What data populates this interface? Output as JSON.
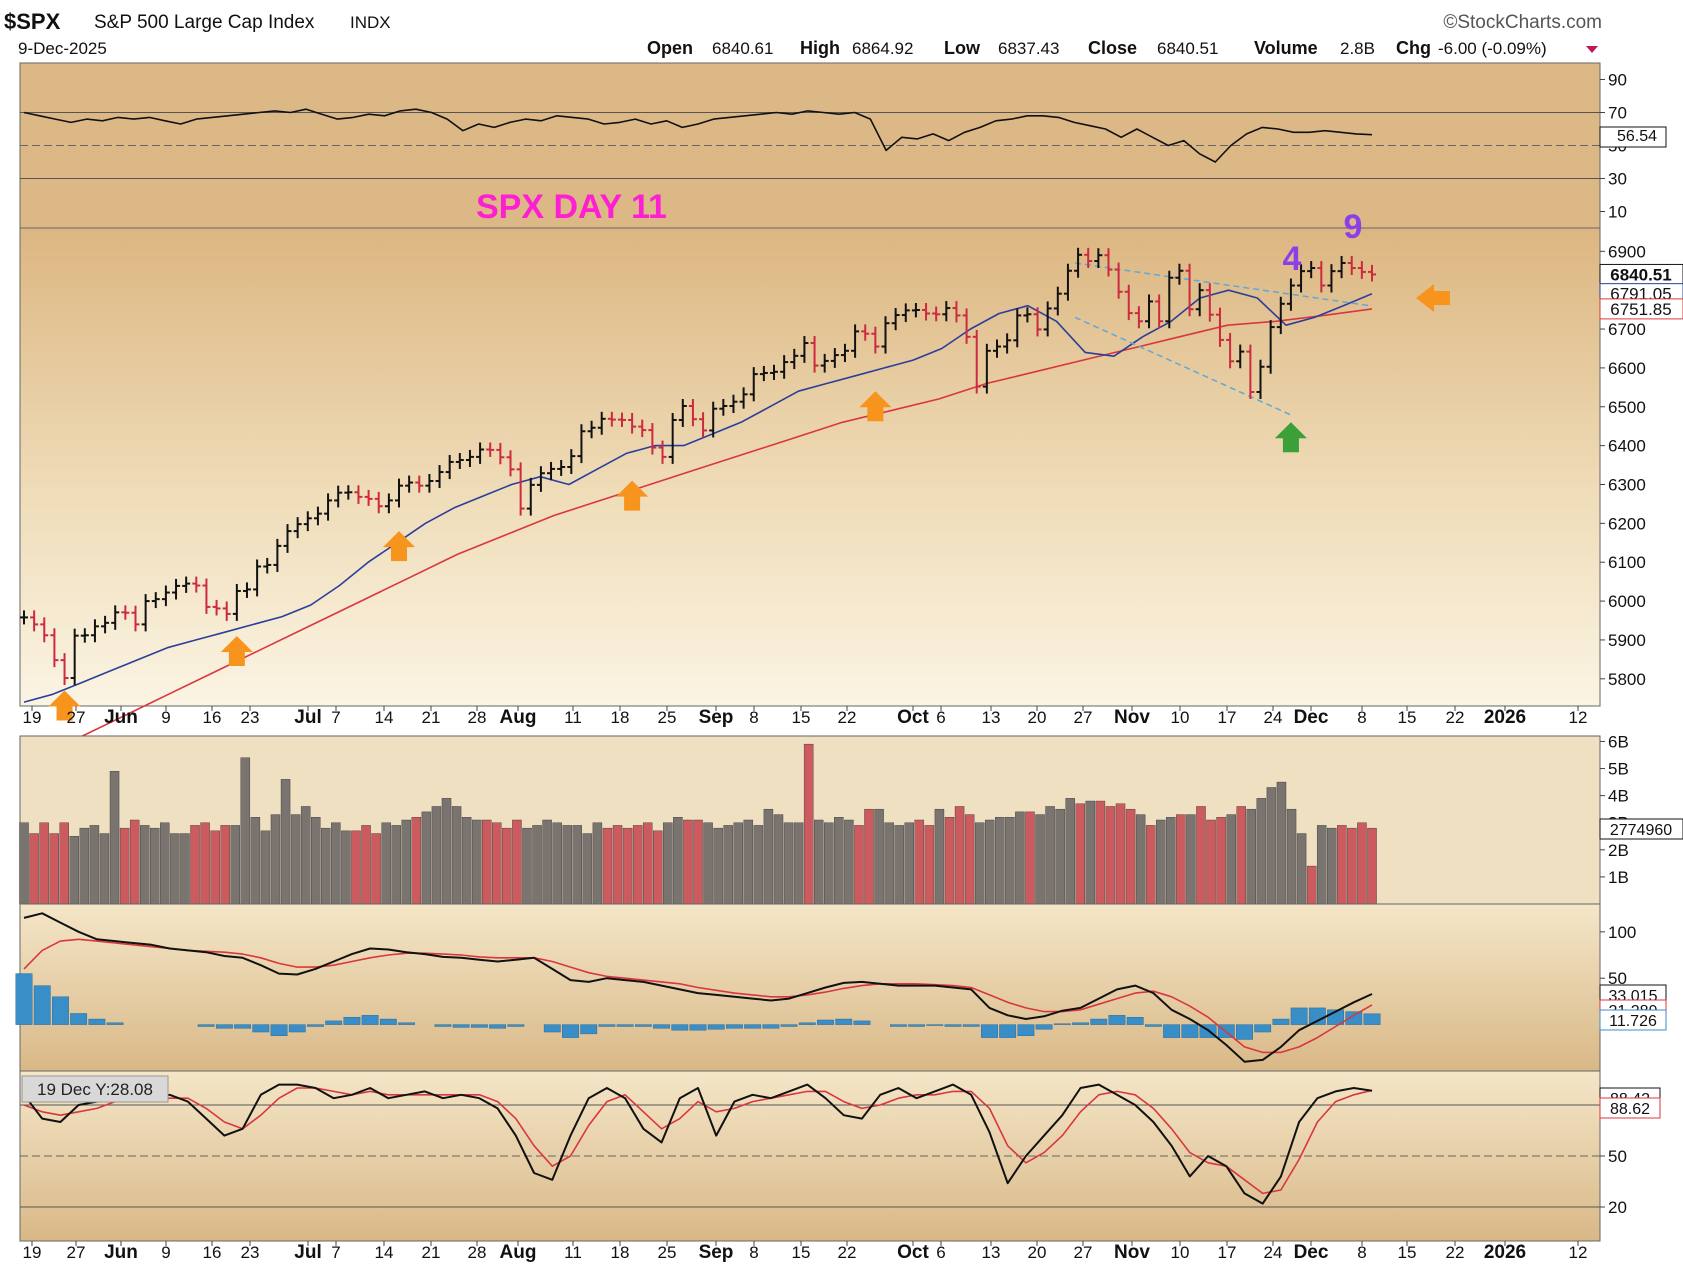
{
  "header": {
    "symbol": "$SPX",
    "name": "S&P 500 Large Cap Index",
    "exchange": "INDX",
    "brand": "©StockCharts.com",
    "date": "9-Dec-2025",
    "quote": [
      {
        "label": "Open",
        "value": "6840.61"
      },
      {
        "label": "High",
        "value": "6864.92"
      },
      {
        "label": "Low",
        "value": "6837.43"
      },
      {
        "label": "Close",
        "value": "6840.51"
      },
      {
        "label": "Volume",
        "value": "2.8B"
      },
      {
        "label": "Chg",
        "value": "-6.00 (-0.09%)"
      }
    ]
  },
  "colors": {
    "up": "#111111",
    "down": "#cc2a3f",
    "ma_short": "#2b3f9a",
    "ma_long": "#d9373f",
    "arrow": "#f7941d",
    "arrow_green": "#3aa037",
    "title": "#ff1fd2",
    "count": "#8c3fe8",
    "vol_up": "#7a7470",
    "vol_down": "#cc5b60",
    "macd_hist": "#3a8ec8"
  },
  "annotations": {
    "title": "SPX DAY 11",
    "count_4": "4",
    "count_9": "9",
    "orange_arrow_dates": [
      "2025-05-27",
      "2025-06-23",
      "2025-07-16",
      "2025-08-22",
      "2025-09-26"
    ],
    "green_arrow_date": "2025-11-21",
    "side_arrow_direction": "left"
  },
  "chart_data": [
    {
      "type": "line",
      "panel": "rsi",
      "y_ticks": [
        "90",
        "70",
        "50",
        "30",
        "10"
      ],
      "ylim": [
        0,
        100
      ],
      "value_label": "56.54",
      "series": [
        {
          "values": [
            70,
            68,
            66,
            64,
            66,
            65,
            67,
            66,
            67,
            65,
            63,
            66,
            67,
            68,
            69,
            70,
            71,
            70,
            72,
            69,
            66,
            67,
            69,
            68,
            71,
            72,
            70,
            66,
            59,
            63,
            61,
            64,
            66,
            65,
            68,
            67,
            66,
            63,
            64,
            66,
            63,
            65,
            61,
            63,
            66,
            67,
            68,
            69,
            70,
            69,
            71,
            70,
            69,
            70,
            66,
            47,
            55,
            54,
            57,
            53,
            58,
            61,
            65,
            66,
            68,
            68,
            67,
            64,
            62,
            60,
            55,
            60,
            55,
            50,
            53,
            45,
            40,
            50,
            57,
            61,
            60,
            58,
            58,
            59,
            58,
            57,
            56.54
          ]
        }
      ]
    },
    {
      "type": "candlestick",
      "panel": "price",
      "y_ticks": [
        "6900",
        "6800",
        "6700",
        "6600",
        "6500",
        "6400",
        "6300",
        "6200",
        "6100",
        "6000",
        "5900",
        "5800"
      ],
      "ylim": [
        5730,
        6960
      ],
      "x_ticks": [
        "19",
        "27",
        "Jun",
        "9",
        "16",
        "23",
        "Jul",
        "7",
        "14",
        "21",
        "28",
        "Aug",
        "11",
        "18",
        "25",
        "Sep",
        "8",
        "15",
        "22",
        "Oct",
        "6",
        "13",
        "20",
        "27",
        "Nov",
        "10",
        "17",
        "24",
        "Dec",
        "8",
        "15",
        "22",
        "2026",
        "12"
      ],
      "value_labels": {
        "close": "6840.51",
        "ma_short": "6791.05",
        "ma_long": "6751.85"
      },
      "closes": [
        5958,
        5940,
        5912,
        5848,
        5802,
        5911,
        5912,
        5935,
        5944,
        5971,
        5970,
        5940,
        6000,
        6005,
        6022,
        6039,
        6045,
        6040,
        5985,
        5981,
        5967,
        6026,
        6030,
        6089,
        6093,
        6142,
        6180,
        6198,
        6213,
        6225,
        6259,
        6279,
        6280,
        6268,
        6263,
        6244,
        6259,
        6297,
        6305,
        6297,
        6309,
        6332,
        6358,
        6363,
        6371,
        6390,
        6389,
        6370,
        6339,
        6238,
        6299,
        6329,
        6340,
        6345,
        6373,
        6437,
        6446,
        6469,
        6467,
        6466,
        6449,
        6440,
        6395,
        6371,
        6466,
        6502,
        6468,
        6439,
        6495,
        6502,
        6513,
        6532,
        6584,
        6587,
        6590,
        6615,
        6631,
        6664,
        6606,
        6618,
        6633,
        6644,
        6694,
        6688,
        6655,
        6715,
        6736,
        6748,
        6749,
        6740,
        6738,
        6754,
        6735,
        6680,
        6552,
        6644,
        6655,
        6671,
        6735,
        6738,
        6699,
        6753,
        6791,
        6850,
        6891,
        6875,
        6890,
        6853,
        6796,
        6741,
        6720,
        6771,
        6720,
        6832,
        6850,
        6751,
        6800,
        6737,
        6672,
        6617,
        6642,
        6538,
        6603,
        6705,
        6765,
        6812,
        6849,
        6857,
        6812,
        6849,
        6870,
        6857,
        6847,
        6840.51
      ],
      "ma_short_values": [
        5740,
        5760,
        5790,
        5820,
        5850,
        5880,
        5900,
        5920,
        5940,
        5960,
        5990,
        6040,
        6100,
        6150,
        6200,
        6240,
        6270,
        6300,
        6320,
        6300,
        6340,
        6380,
        6400,
        6400,
        6430,
        6460,
        6500,
        6540,
        6560,
        6580,
        6600,
        6620,
        6650,
        6700,
        6740,
        6760,
        6720,
        6640,
        6630,
        6680,
        6720,
        6780,
        6800,
        6780,
        6710,
        6730,
        6760,
        6791.05
      ],
      "ma_long_values": [
        5600,
        5640,
        5700,
        5760,
        5820,
        5880,
        5940,
        6000,
        6060,
        6120,
        6170,
        6220,
        6260,
        6300,
        6340,
        6380,
        6420,
        6460,
        6490,
        6520,
        6560,
        6590,
        6620,
        6650,
        6680,
        6710,
        6720,
        6735,
        6751.85
      ]
    },
    {
      "type": "bar",
      "panel": "volume",
      "y_ticks": [
        "6B",
        "5B",
        "4B",
        "3B",
        "2B",
        "1B"
      ],
      "ylim": [
        0,
        6200000000
      ],
      "value_label": "2774960",
      "values": [
        3.0,
        2.6,
        3.0,
        2.6,
        3.0,
        2.5,
        2.8,
        2.9,
        2.6,
        4.9,
        2.8,
        3.1,
        2.9,
        2.8,
        3.0,
        2.6,
        2.6,
        2.9,
        3.0,
        2.7,
        2.9,
        2.9,
        5.4,
        3.2,
        2.7,
        3.3,
        4.6,
        3.3,
        3.6,
        3.2,
        2.8,
        3.0,
        2.7,
        2.7,
        2.9,
        2.6,
        3.0,
        2.9,
        3.1,
        3.2,
        3.4,
        3.6,
        3.9,
        3.6,
        3.2,
        3.1,
        3.1,
        3.0,
        2.8,
        3.1,
        2.8,
        2.9,
        3.1,
        3.0,
        2.9,
        2.9,
        2.6,
        3.0,
        2.8,
        2.9,
        2.8,
        2.9,
        3.0,
        2.7,
        3.0,
        3.2,
        3.1,
        3.1,
        3.0,
        2.8,
        2.9,
        3.0,
        3.1,
        2.9,
        3.5,
        3.3,
        3.0,
        3.0,
        5.9,
        3.1,
        3.0,
        3.2,
        3.1,
        2.9,
        3.5,
        3.5,
        3.0,
        2.9,
        3.0,
        3.1,
        2.9,
        3.5,
        3.2,
        3.6,
        3.3,
        3.0,
        3.1,
        3.2,
        3.2,
        3.4,
        3.4,
        3.3,
        3.6,
        3.5,
        3.9,
        3.7,
        3.8,
        3.8,
        3.6,
        3.7,
        3.5,
        3.3,
        2.9,
        3.1,
        3.2,
        3.3,
        3.3,
        3.6,
        3.1,
        3.2,
        3.3,
        3.6,
        3.5,
        3.9,
        4.3,
        4.5,
        3.5,
        2.6,
        1.4,
        2.9,
        2.8,
        2.9,
        2.8,
        3.0,
        2.8
      ]
    },
    {
      "type": "line",
      "panel": "macd",
      "y_ticks": [
        "100",
        "50",
        "0"
      ],
      "ylim": [
        -50,
        130
      ],
      "value_labels": [
        "33.015",
        "21.289",
        "11.726"
      ],
      "series": [
        {
          "values": [
            115,
            120,
            110,
            100,
            92,
            90,
            88,
            86,
            82,
            80,
            78,
            74,
            72,
            64,
            55,
            54,
            60,
            68,
            76,
            82,
            81,
            78,
            76,
            73,
            72,
            70,
            68,
            70,
            72,
            60,
            48,
            46,
            50,
            48,
            46,
            42,
            38,
            34,
            32,
            30,
            28,
            26,
            28,
            34,
            40,
            45,
            46,
            44,
            42,
            42,
            42,
            40,
            38,
            18,
            10,
            6,
            9,
            15,
            18,
            28,
            38,
            42,
            34,
            16,
            6,
            -6,
            -22,
            -40,
            -38,
            -24,
            -6,
            4,
            14,
            24,
            33.015
          ]
        },
        {
          "values": [
            60,
            80,
            90,
            92,
            90,
            88,
            86,
            84,
            82,
            80,
            79,
            78,
            76,
            72,
            66,
            62,
            62,
            64,
            68,
            72,
            75,
            77,
            77,
            76,
            75,
            73,
            72,
            72,
            72,
            68,
            62,
            56,
            52,
            50,
            48,
            46,
            44,
            40,
            37,
            34,
            32,
            30,
            30,
            32,
            35,
            39,
            42,
            44,
            44,
            44,
            43,
            42,
            40,
            32,
            24,
            18,
            14,
            14,
            16,
            22,
            28,
            34,
            36,
            30,
            20,
            8,
            -8,
            -24,
            -30,
            -30,
            -24,
            -14,
            -2,
            10,
            21.289
          ]
        }
      ],
      "histogram": [
        55,
        42,
        30,
        12,
        6,
        2,
        0,
        0,
        0,
        0,
        -2,
        -4,
        -4,
        -8,
        -12,
        -8,
        -2,
        4,
        8,
        10,
        6,
        2,
        0,
        -2,
        -3,
        -3,
        -4,
        -2,
        0,
        -8,
        -14,
        -10,
        -2,
        -2,
        -2,
        -4,
        -6,
        -6,
        -5,
        -4,
        -4,
        -4,
        -2,
        2,
        5,
        6,
        4,
        0,
        -2,
        -2,
        -1,
        -2,
        -2,
        -14,
        -14,
        -12,
        -5,
        1,
        2,
        6,
        10,
        8,
        -2,
        -14,
        -14,
        -14,
        -14,
        -16,
        -8,
        6,
        18,
        18,
        16,
        14,
        11.726
      ]
    },
    {
      "type": "line",
      "panel": "stochastic",
      "y_ticks": [
        "80",
        "50",
        "20"
      ],
      "ylim": [
        0,
        100
      ],
      "value_labels": [
        "88.42",
        "88.62"
      ],
      "readout": "19 Dec Y:28.08",
      "series": [
        {
          "values": [
            86,
            72,
            70,
            80,
            82,
            84,
            90,
            84,
            86,
            82,
            72,
            62,
            66,
            86,
            92,
            92,
            90,
            84,
            86,
            90,
            84,
            86,
            88,
            84,
            86,
            84,
            78,
            62,
            40,
            36,
            62,
            84,
            90,
            84,
            66,
            58,
            84,
            90,
            62,
            82,
            86,
            84,
            88,
            92,
            84,
            74,
            72,
            86,
            90,
            84,
            88,
            92,
            86,
            64,
            34,
            50,
            62,
            74,
            90,
            92,
            86,
            80,
            70,
            56,
            38,
            50,
            44,
            28,
            22,
            38,
            70,
            84,
            88,
            90,
            88.42
          ]
        },
        {
          "values": [
            80,
            76,
            74,
            76,
            78,
            82,
            86,
            86,
            84,
            84,
            78,
            70,
            66,
            74,
            84,
            90,
            90,
            88,
            86,
            88,
            86,
            86,
            86,
            86,
            86,
            86,
            82,
            72,
            56,
            44,
            50,
            68,
            82,
            86,
            76,
            66,
            72,
            82,
            76,
            78,
            82,
            84,
            86,
            88,
            88,
            82,
            78,
            80,
            84,
            86,
            86,
            88,
            88,
            78,
            56,
            46,
            52,
            62,
            76,
            86,
            88,
            86,
            78,
            66,
            52,
            46,
            44,
            36,
            28,
            30,
            48,
            70,
            82,
            86,
            88.62
          ]
        }
      ]
    }
  ]
}
